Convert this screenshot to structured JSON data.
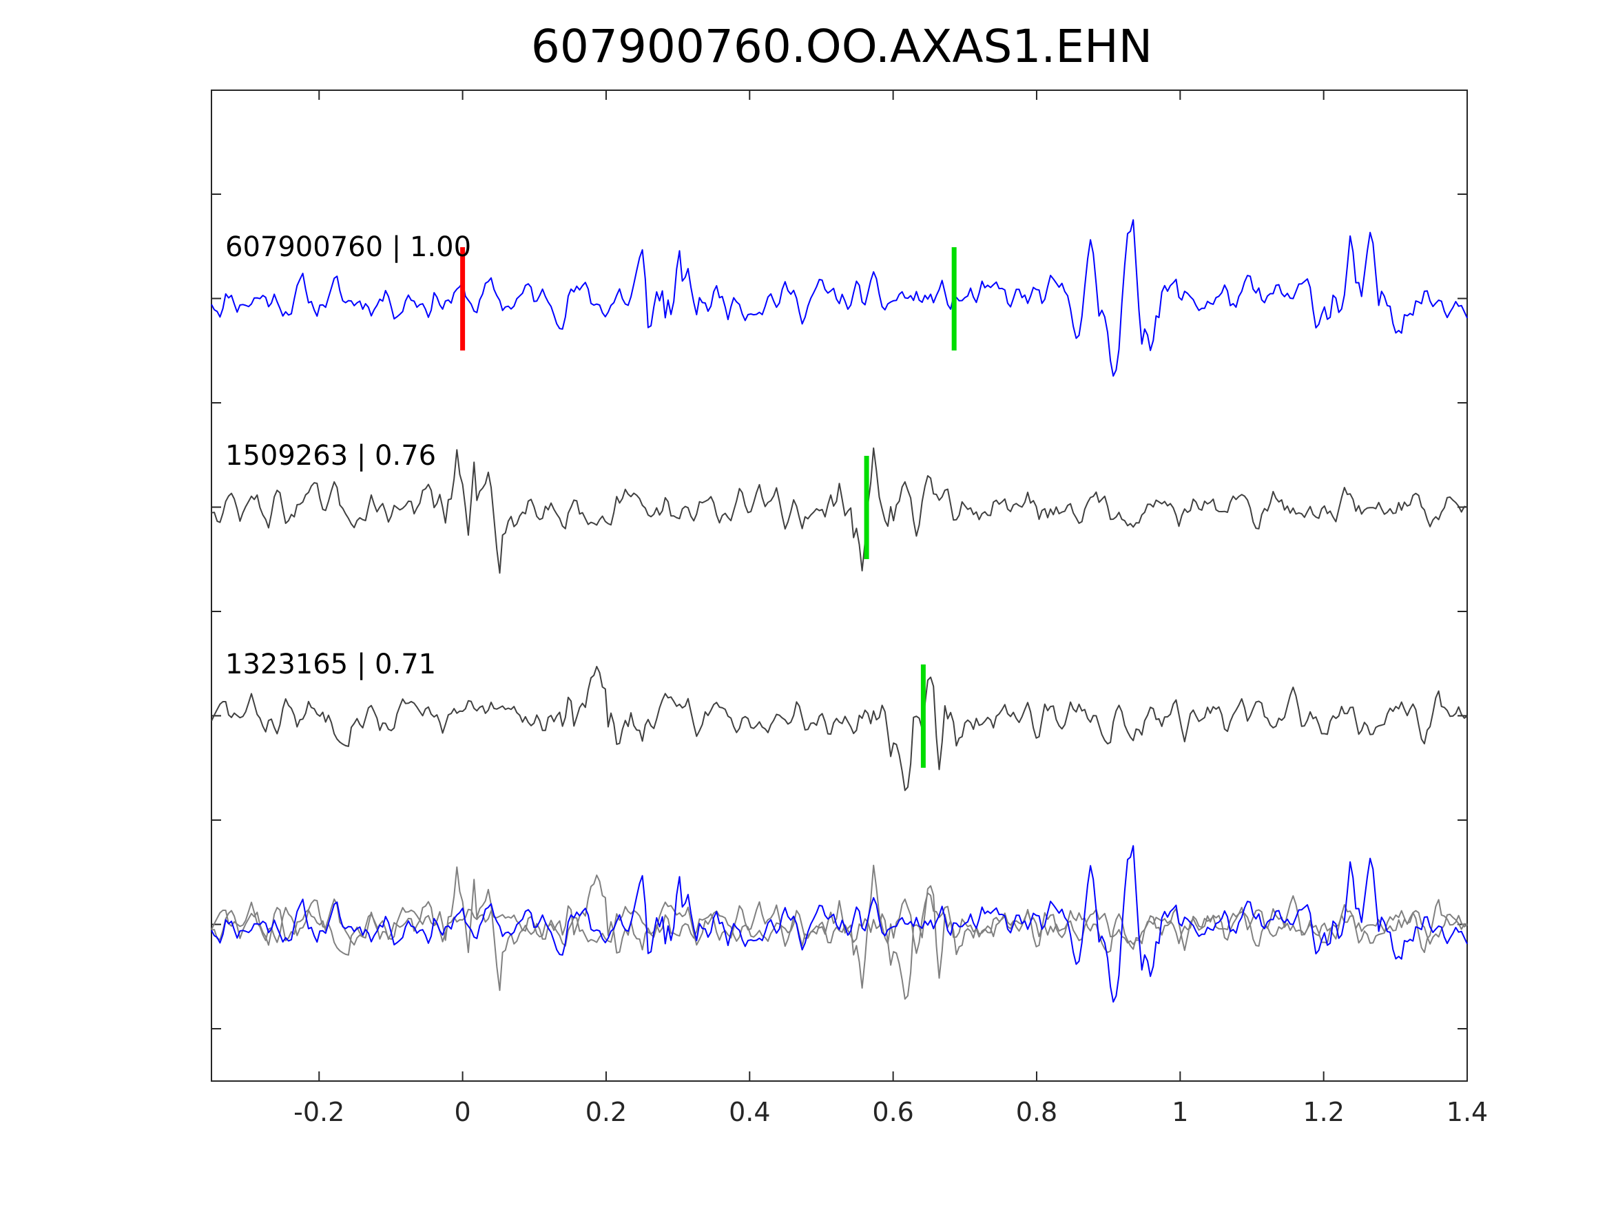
{
  "chart_data": {
    "type": "line",
    "title": "607900760.OO.AXAS1.EHN",
    "xlabel": "",
    "ylabel": "",
    "xlim": [
      -0.35,
      1.4
    ],
    "x_ticks": [
      -0.2,
      0,
      0.2,
      0.4,
      0.6,
      0.8,
      1,
      1.2,
      1.4
    ],
    "x_tick_labels": [
      "-0.2",
      "0",
      "0.2",
      "0.4",
      "0.6",
      "0.8",
      "1",
      "1.2",
      "1.4"
    ],
    "y_tick_count": 10,
    "grid": false,
    "colors": {
      "master": "#0000ff",
      "neighbor": "#404040",
      "overlay_neighbor": "#808080",
      "p_pick": "#ff0000",
      "s_pick": "#00dd00"
    },
    "traces": [
      {
        "id": "master",
        "label": "607900760 | 1.00",
        "offset": 0,
        "seed": 11,
        "bursts": [
          [
            0.27,
            1.0
          ],
          [
            0.92,
            1.2
          ],
          [
            1.25,
            0.9
          ]
        ],
        "p_pick": 0.0,
        "s_pick": 0.685
      },
      {
        "id": "neighbor-1",
        "label": "1509263 | 0.76",
        "offset": -1,
        "seed": 47,
        "bursts": [
          [
            0.02,
            1.3
          ],
          [
            0.565,
            1.1
          ]
        ],
        "s_pick": 0.563
      },
      {
        "id": "neighbor-2",
        "label": "1323165 | 0.71",
        "offset": -2,
        "seed": 83,
        "bursts": [
          [
            0.64,
            1.3
          ],
          [
            0.2,
            0.8
          ]
        ],
        "s_pick": 0.642
      }
    ],
    "overlay_offset": -3
  }
}
